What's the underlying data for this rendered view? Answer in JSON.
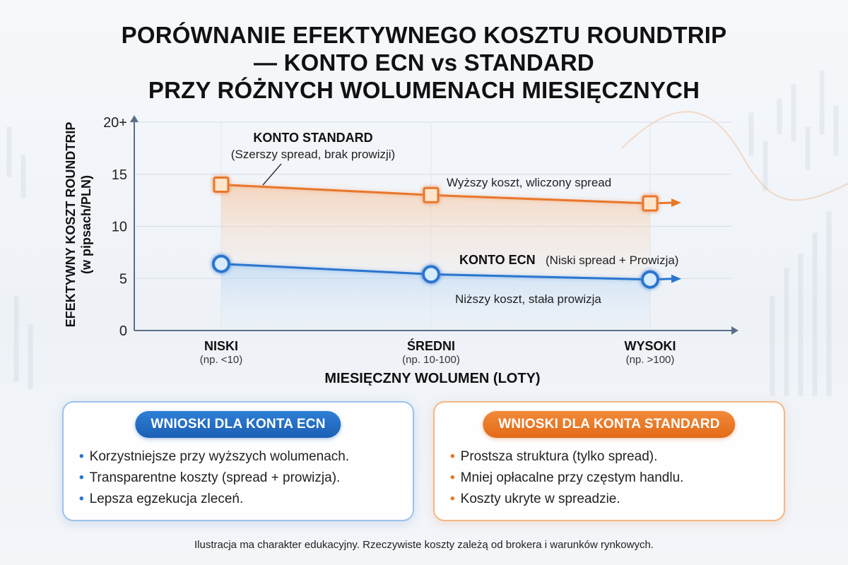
{
  "title_lines": [
    "PORÓWNANIE EFEKTYWNEGO KOSZTU ROUNDTRIP",
    "— KONTO ECN vs STANDARD",
    "PRZY RÓŻNYCH WOLUMENACH MIESIĘCZNYCH"
  ],
  "chart_data": {
    "type": "line",
    "title": "PORÓWNANIE EFEKTYWNEGO KOSZTU ROUNDTRIP — KONTO ECN vs STANDARD PRZY RÓŻNYCH WOLUMENACH MIESIĘCZNYCH",
    "ylabel_lines": [
      "EFEKTYWNY KOSZT ROUNDTRIP",
      "(w pipsach/PLN)"
    ],
    "xlabel": "MIESIĘCZNY WOLUMEN (LOTY)",
    "ylim": [
      0,
      20
    ],
    "y_ticks": [
      {
        "value": 0,
        "label": "0"
      },
      {
        "value": 5,
        "label": "5"
      },
      {
        "value": 10,
        "label": "10"
      },
      {
        "value": 15,
        "label": "15"
      },
      {
        "value": 20,
        "label": "20+"
      }
    ],
    "categories": [
      {
        "label": "NISKI",
        "sub": "(np. <10)"
      },
      {
        "label": "ŚREDNI",
        "sub": "(np. 10-100)"
      },
      {
        "label": "WYSOKI",
        "sub": "(np. >100)"
      }
    ],
    "grid": true,
    "series": [
      {
        "name": "KONTO STANDARD",
        "name_note": "(Szerszy spread, brak prowizji)",
        "annotation": "Wyższy koszt, wliczony spread",
        "color": "#e8772a",
        "marker": "square",
        "values": [
          14,
          13,
          12.2
        ]
      },
      {
        "name": "KONTO ECN",
        "name_note": "(Niski spread + Prowizja)",
        "annotation": "Niższy koszt, stała prowizja",
        "color": "#2a76cf",
        "marker": "circle",
        "values": [
          6.4,
          5.4,
          4.9
        ]
      }
    ]
  },
  "cards": {
    "ecn": {
      "title": "WNIOSKI DLA KONTA ECN",
      "items": [
        "Korzystniejsze przy wyższych wolumenach.",
        "Transparentne koszty (spread + prowizja).",
        "Lepsza egzekucja zleceń."
      ]
    },
    "standard": {
      "title": "WNIOSKI DLA KONTA STANDARD",
      "items": [
        "Prostsza struktura (tylko spread).",
        "Mniej opłacalne przy częstym handlu.",
        "Koszty ukryte w spreadzie."
      ]
    }
  },
  "footnote": "Ilustracja ma charakter edukacyjny. Rzeczywiste koszty zależą od brokera i warunków rynkowych."
}
